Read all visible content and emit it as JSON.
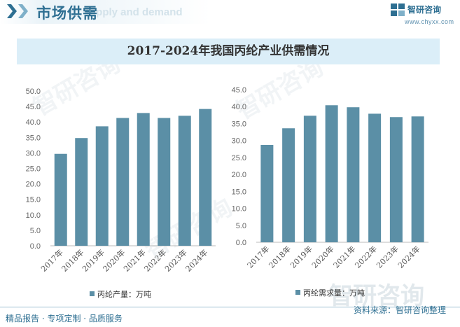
{
  "header": {
    "title": "市场供需",
    "ghost_text": "Supply and demand"
  },
  "brand": {
    "name": "智研咨询",
    "url": "www.chyxx.com"
  },
  "chart_title": "2017-2024年我国丙纶产业供需情况",
  "footer": {
    "left": "精品报告 · 专项定制 · 品质服务",
    "right": "资料来源：智研咨询整理"
  },
  "watermark": "智研咨询",
  "colors": {
    "bar": "#5b8fa6",
    "accent": "#2e6f92",
    "title_band": "#dbeef8"
  },
  "chart_data": [
    {
      "type": "bar",
      "categories": [
        "2017年",
        "2018年",
        "2019年",
        "2020年",
        "2021年",
        "2022年",
        "2023年",
        "2024年"
      ],
      "series": [
        {
          "name": "丙纶产量：万吨",
          "values": [
            29.7,
            34.8,
            38.6,
            41.3,
            42.9,
            41.3,
            42.0,
            44.2
          ]
        }
      ],
      "yticks": [
        "0.0",
        "5.0",
        "10.0",
        "15.0",
        "20.0",
        "25.0",
        "30.0",
        "35.0",
        "40.0",
        "45.0",
        "50.0"
      ],
      "ylim": [
        0,
        50
      ],
      "legend_position": "bottom-center",
      "grid": false
    },
    {
      "type": "bar",
      "categories": [
        "2017年",
        "2018年",
        "2019年",
        "2020年",
        "2021年",
        "2022年",
        "2023年",
        "2024年"
      ],
      "series": [
        {
          "name": "丙纶需求量：万吨",
          "values": [
            28.7,
            33.6,
            37.3,
            40.4,
            39.8,
            37.9,
            36.9,
            37.1
          ]
        }
      ],
      "yticks": [
        "0.0",
        "5.0",
        "10.0",
        "15.0",
        "20.0",
        "25.0",
        "30.0",
        "35.0",
        "40.0",
        "45.0"
      ],
      "ylim": [
        0,
        45
      ],
      "legend_position": "bottom-center",
      "grid": false
    }
  ]
}
